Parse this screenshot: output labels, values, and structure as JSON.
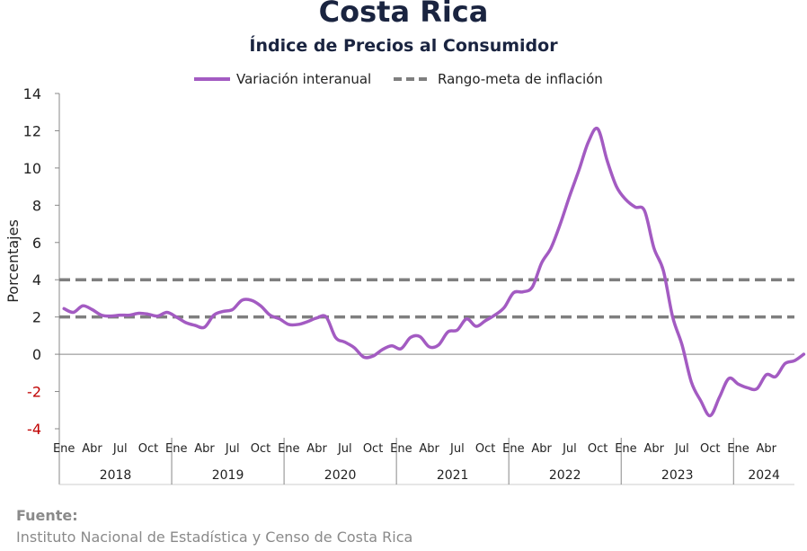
{
  "title": "Costa Rica",
  "subtitle": "Índice de Precios al Consumidor",
  "source": {
    "label": "Fuente:",
    "text": "Instituto Nacional de Estadística y Censo de Costa Rica"
  },
  "colors": {
    "series": "#a35bc2",
    "target": "#7f7f7f",
    "negative_tick": "#c00000"
  },
  "chart_data": {
    "type": "line",
    "ylabel": "Porcentajes",
    "ylim": [
      -4,
      14
    ],
    "yticks": [
      -4,
      -2,
      0,
      2,
      4,
      6,
      8,
      10,
      12,
      14
    ],
    "legend_position": "top-center",
    "month_labels": [
      "Ene",
      "Abr",
      "Jul",
      "Oct"
    ],
    "years": [
      "2018",
      "2019",
      "2020",
      "2021",
      "2022",
      "2023",
      "2024"
    ],
    "x_start": "2018-01",
    "series": [
      {
        "name": "Variación interanual",
        "style": "solid",
        "values": [
          2.45,
          2.25,
          2.6,
          2.4,
          2.1,
          2.05,
          2.1,
          2.1,
          2.2,
          2.15,
          2.05,
          2.25,
          2.0,
          1.7,
          1.55,
          1.45,
          2.1,
          2.3,
          2.4,
          2.9,
          2.9,
          2.6,
          2.1,
          1.9,
          1.6,
          1.6,
          1.75,
          1.95,
          2.0,
          0.9,
          0.65,
          0.35,
          -0.15,
          -0.1,
          0.25,
          0.45,
          0.3,
          0.9,
          0.95,
          0.4,
          0.5,
          1.2,
          1.3,
          1.9,
          1.5,
          1.8,
          2.1,
          2.5,
          3.3,
          3.35,
          3.6,
          4.9,
          5.7,
          7.0,
          8.5,
          9.9,
          11.4,
          12.1,
          10.4,
          9.0,
          8.3,
          7.9,
          7.7,
          5.7,
          4.5,
          2.0,
          0.5,
          -1.5,
          -2.5,
          -3.3,
          -2.3,
          -1.3,
          -1.6,
          -1.8,
          -1.85,
          -1.1,
          -1.2,
          -0.5,
          -0.35,
          0.0
        ]
      },
      {
        "name": "Rango-meta de inflación",
        "style": "dashed",
        "lines": [
          2,
          4
        ]
      }
    ]
  }
}
